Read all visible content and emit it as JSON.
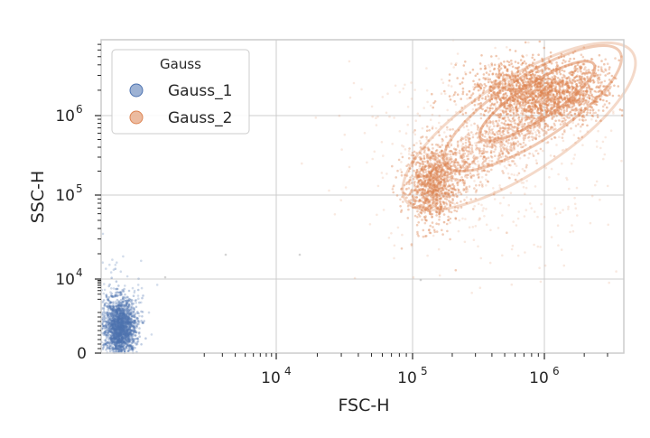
{
  "chart_data": {
    "type": "scatter",
    "title": "",
    "xlabel": "FSC-H",
    "ylabel": "SSC-H",
    "x_scale": "symlog",
    "y_scale": "symlog",
    "xlim": [
      200,
      4000000
    ],
    "ylim": [
      0,
      8000000
    ],
    "x_ticks": [
      {
        "value": 10000,
        "base": "10",
        "exp": "4"
      },
      {
        "value": 100000,
        "base": "10",
        "exp": "5"
      },
      {
        "value": 1000000,
        "base": "10",
        "exp": "6"
      }
    ],
    "y_ticks": [
      {
        "value": 0,
        "label": "0"
      },
      {
        "value": 10000,
        "base": "10",
        "exp": "4"
      },
      {
        "value": 100000,
        "base": "10",
        "exp": "5"
      },
      {
        "value": 1000000,
        "base": "10",
        "exp": "6"
      }
    ],
    "grid": true,
    "legend": {
      "title": "Gauss",
      "placement": "top-left",
      "entries": [
        {
          "name": "Gauss_1",
          "color": "#4c72b0"
        },
        {
          "name": "Gauss_2",
          "color": "#dd8452"
        }
      ]
    },
    "series": [
      {
        "name": "Gauss_1",
        "color": "#4c72b0",
        "center": [
          500,
          2000
        ],
        "x_range": [
          300,
          900
        ],
        "y_range": [
          0,
          25000
        ],
        "approx_points": 2500
      },
      {
        "name": "Gauss_2",
        "color": "#dd8452",
        "center": [
          900000,
          2000000
        ],
        "x_range": [
          100000,
          3000000
        ],
        "y_range": [
          50000,
          6000000
        ],
        "approx_points": 6000,
        "sub_clusters": [
          {
            "center": [
              120000,
              110000
            ]
          },
          {
            "center": [
              500000,
              1300000
            ]
          },
          {
            "center": [
              1200000,
              2500000
            ]
          }
        ]
      }
    ]
  }
}
